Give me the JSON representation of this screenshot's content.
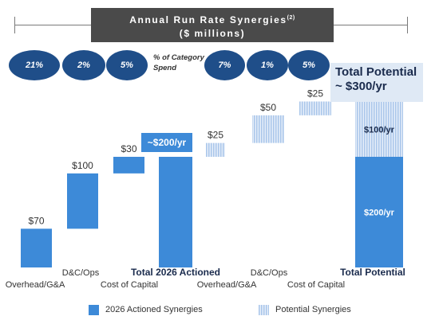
{
  "header": {
    "title": "Annual Run Rate Synergies",
    "footnote": "(2)",
    "subtitle": "($ millions)"
  },
  "category_spend": {
    "note": "% of Category Spend",
    "actioned": [
      "21%",
      "2%",
      "5%"
    ],
    "potential": [
      "7%",
      "1%",
      "5%"
    ]
  },
  "total_box": {
    "line1": "Total Potential",
    "line2": "~ $300/yr"
  },
  "colors": {
    "actioned": "#3d8ad8",
    "potential": "#a9c6ea",
    "pill": "#1f4e89"
  },
  "chart_data": {
    "type": "bar",
    "subtype": "waterfall",
    "unit": "$ millions",
    "categories": [
      "Overhead/G&A",
      "D&C/Ops",
      "Cost of Capital",
      "Total 2026 Actioned",
      "Overhead/G&A",
      "D&C/Ops",
      "Cost of Capital",
      "Total Potential"
    ],
    "steps": [
      {
        "category": "Overhead/G&A",
        "series": "2026 Actioned Synergies",
        "value": 70,
        "label": "$70",
        "start": 0
      },
      {
        "category": "D&C/Ops",
        "series": "2026 Actioned Synergies",
        "value": 100,
        "label": "$100",
        "start": 70
      },
      {
        "category": "Cost of Capital",
        "series": "2026 Actioned Synergies",
        "value": 30,
        "label": "$30",
        "start": 170
      },
      {
        "category": "Total 2026 Actioned",
        "series": "2026 Actioned Synergies",
        "value": 200,
        "label": "~$200/yr",
        "start": 0,
        "total": true
      },
      {
        "category": "Overhead/G&A",
        "series": "Potential Synergies",
        "value": 25,
        "label": "$25",
        "start": 200
      },
      {
        "category": "D&C/Ops",
        "series": "Potential Synergies",
        "value": 50,
        "label": "$50",
        "start": 225
      },
      {
        "category": "Cost of Capital",
        "series": "Potential Synergies",
        "value": 25,
        "label": "$25",
        "start": 275
      },
      {
        "category": "Total Potential",
        "series": "2026 Actioned Synergies",
        "value": 200,
        "label": "$200/yr",
        "start": 0,
        "total": true
      },
      {
        "category": "Total Potential",
        "series": "Potential Synergies",
        "value": 100,
        "label": "$100/yr",
        "start": 200,
        "total": true
      }
    ],
    "series": [
      {
        "name": "2026 Actioned Synergies"
      },
      {
        "name": "Potential Synergies"
      }
    ],
    "ylim": [
      0,
      330
    ],
    "legend": "bottom"
  }
}
